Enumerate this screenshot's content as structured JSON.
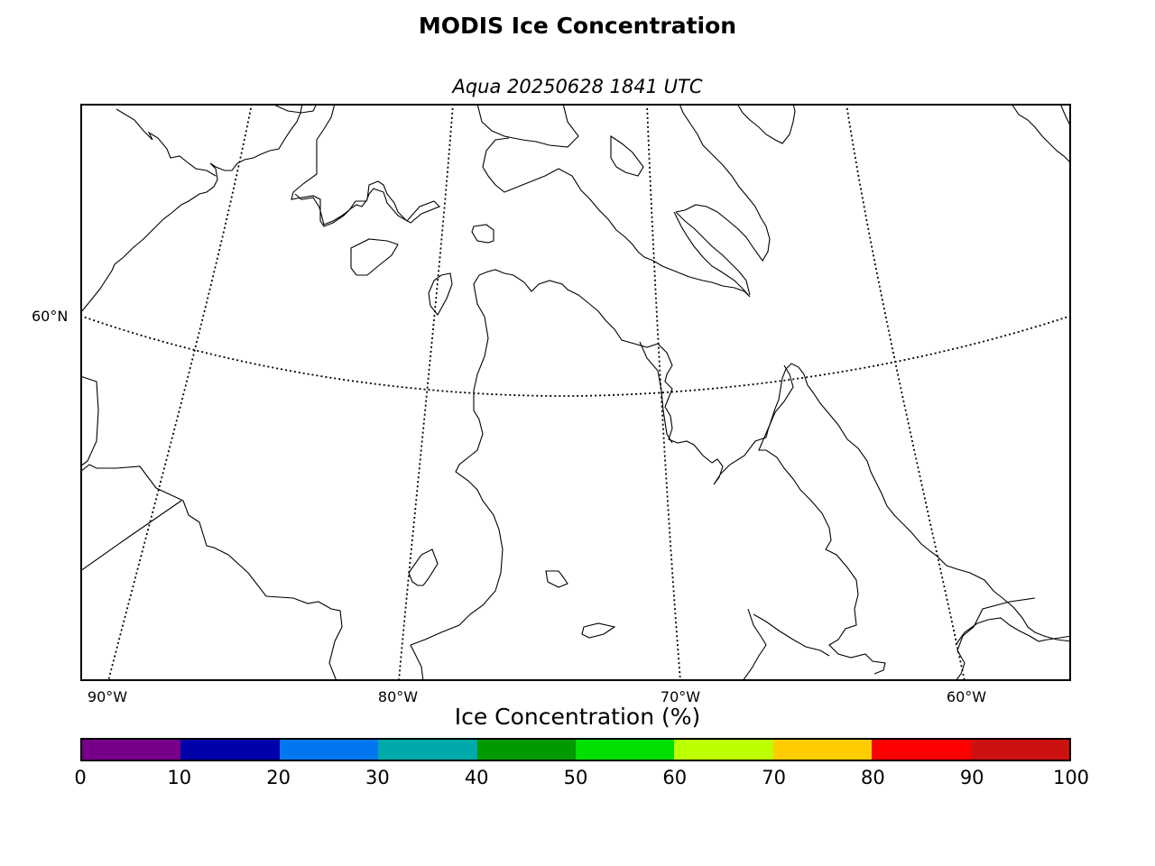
{
  "title": "MODIS Ice Concentration",
  "subtitle": "Aqua 20250628 1841 UTC",
  "map": {
    "lon_labels": [
      "90°W",
      "80°W",
      "70°W",
      "60°W"
    ],
    "lat_labels": [
      "60°N"
    ],
    "land_fill": "#ffffff",
    "coast_color": "#000000"
  },
  "colorbar": {
    "title": "Ice Concentration (%)",
    "ticks": [
      "0",
      "10",
      "20",
      "30",
      "40",
      "50",
      "60",
      "70",
      "80",
      "90",
      "100"
    ],
    "colors": [
      "#770088",
      "#0000aa",
      "#0077ee",
      "#00aaaa",
      "#009900",
      "#00e000",
      "#bbff00",
      "#ffcc00",
      "#ff0000",
      "#cc1111"
    ]
  }
}
